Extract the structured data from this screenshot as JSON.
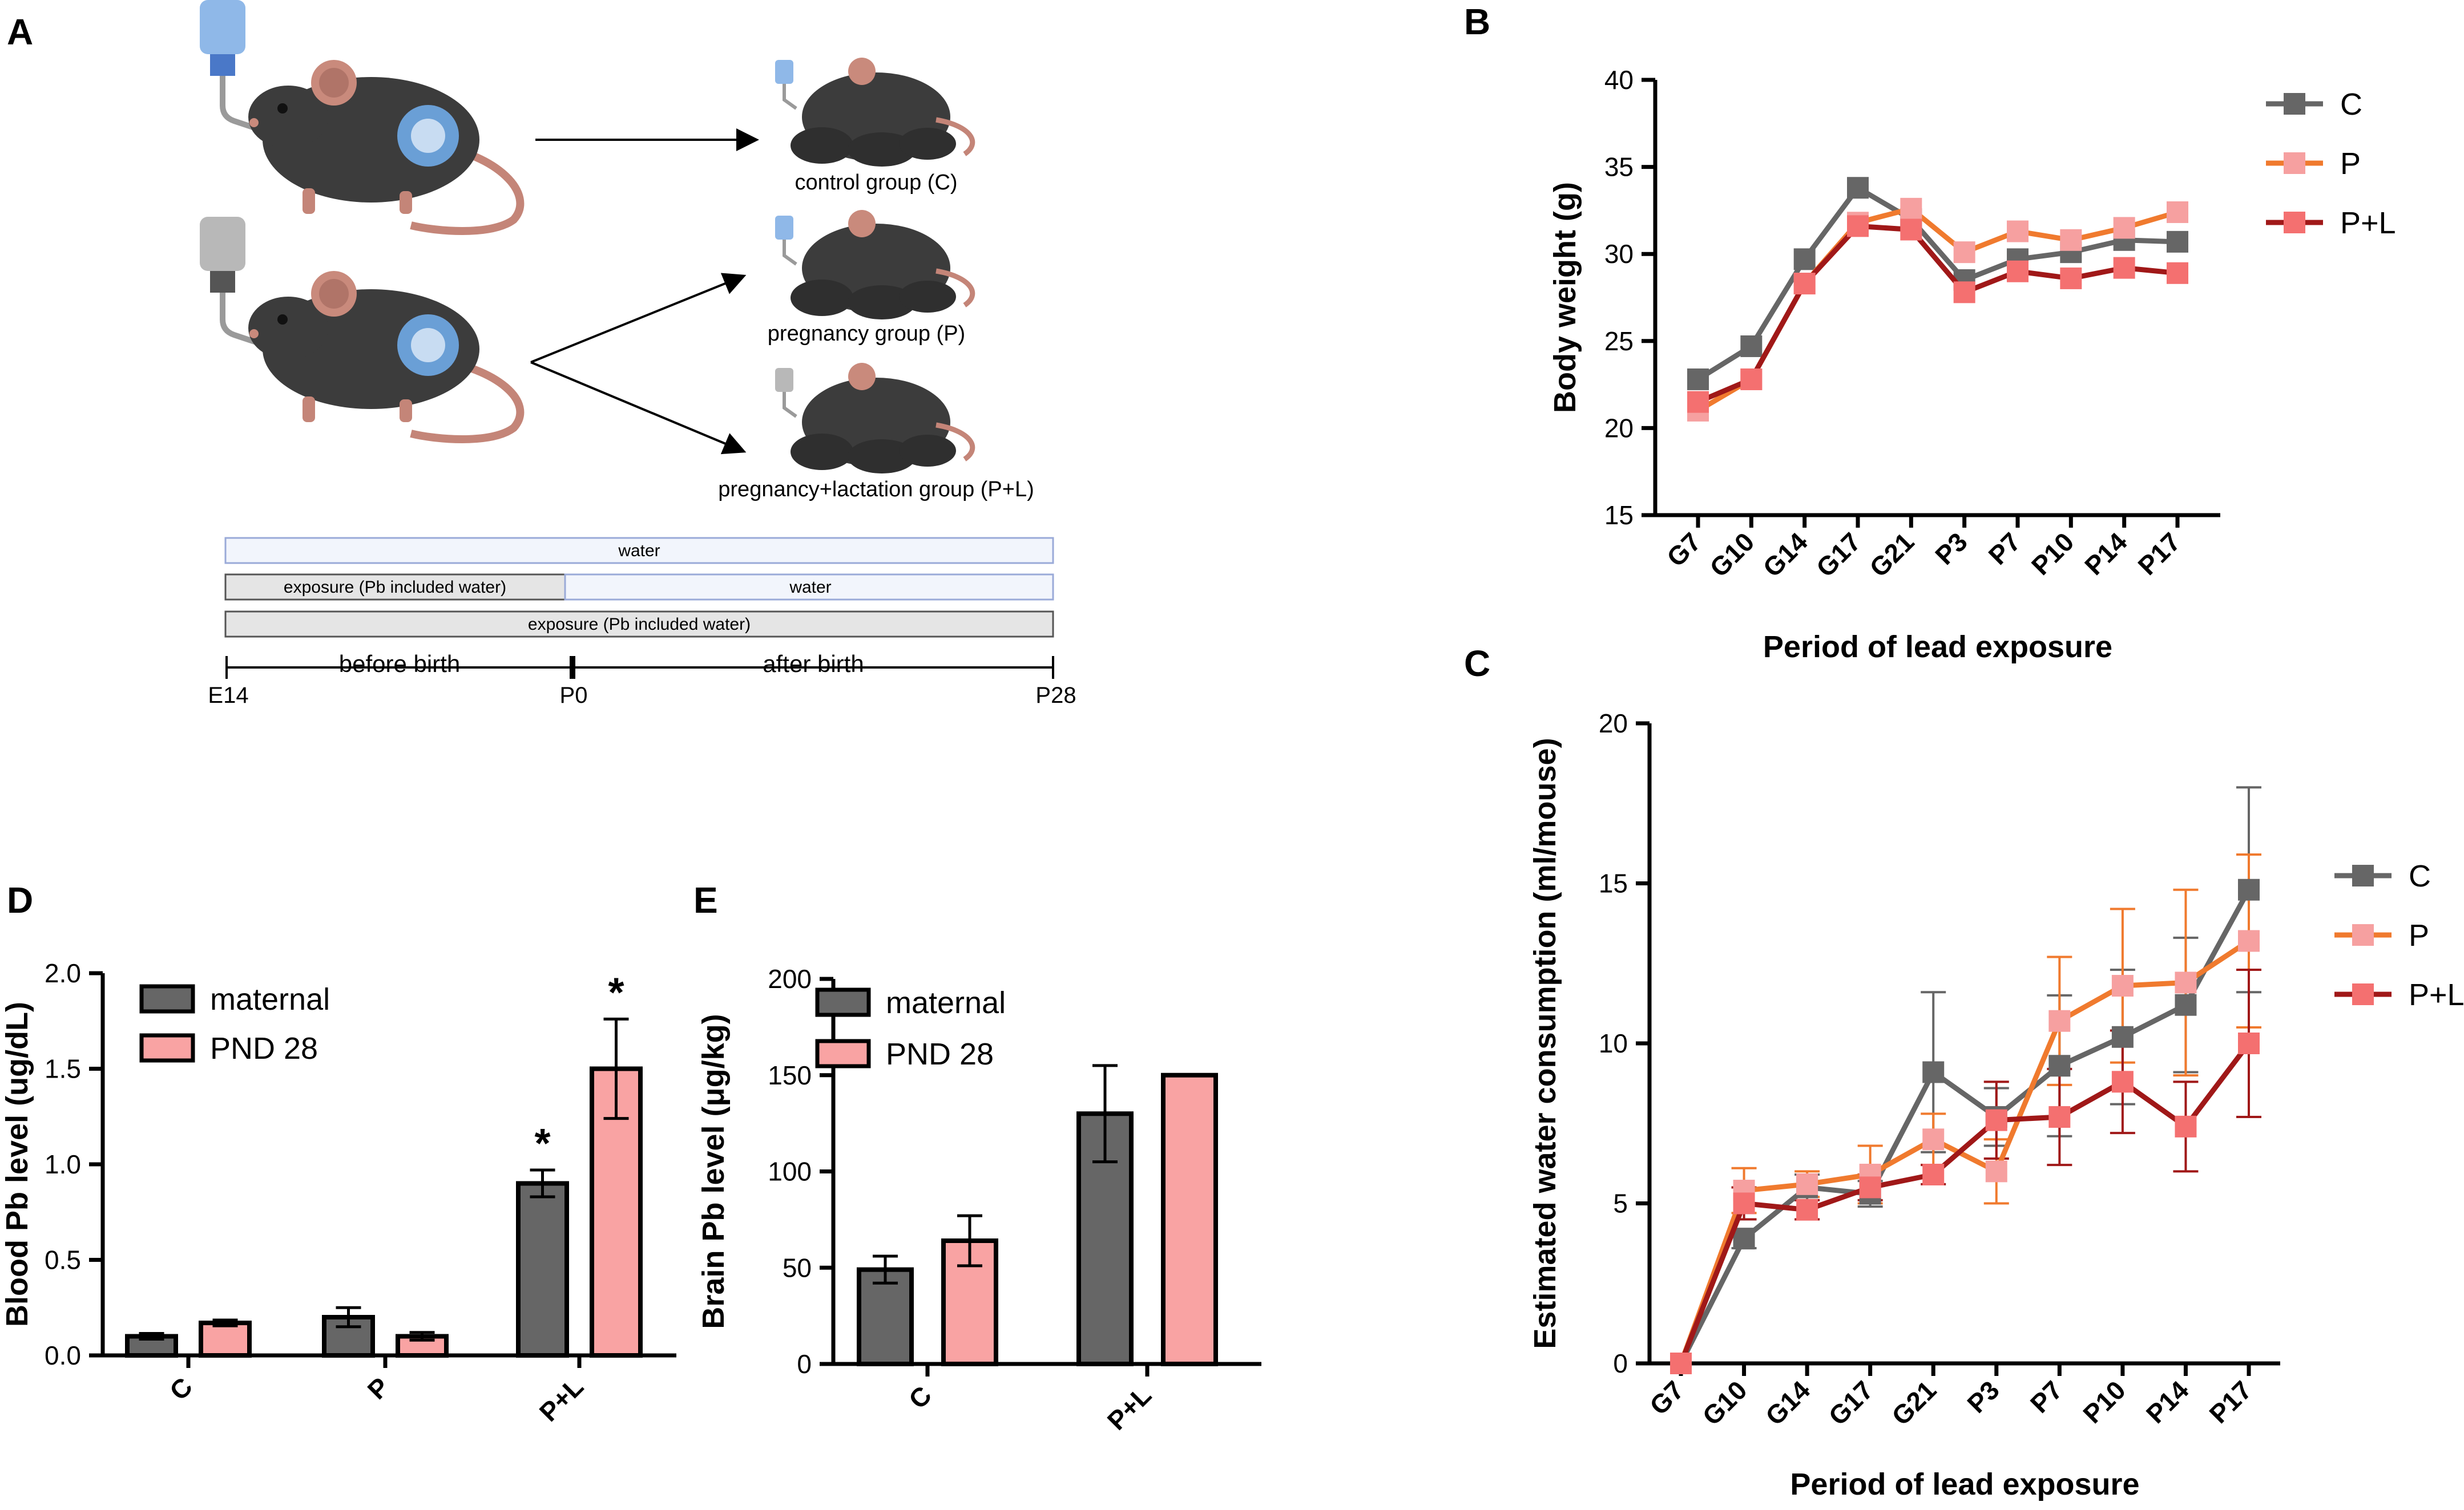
{
  "colors": {
    "C": "#666666",
    "P_line": "#f07a2e",
    "P_marker": "#f6a0a0",
    "PL_line": "#a01818",
    "PL_marker": "#f47070",
    "maternal": "#666666",
    "pnd28": "#f9a3a3",
    "mouse": "#3c3c3c",
    "ear": "#c98a7c",
    "tail": "#c48578",
    "fetus": "#6a9fd6",
    "bottle_blue": "#8fb8e8",
    "bottle_gray": "#b8b8b8",
    "water_box": "#f2f5fc",
    "water_border": "#9aaad8",
    "exposure_box": "#e5e5e5",
    "exposure_border": "#555555"
  },
  "panels": {
    "A": "A",
    "B": "B",
    "C": "C",
    "D": "D",
    "E": "E"
  },
  "diagram": {
    "icons": [
      "mouse-icon",
      "bottle-icon",
      "fetus-icon",
      "pups-icon"
    ],
    "groups": [
      "control group (C)",
      "pregnancy group (P)",
      "pregnancy+lactation group (P+L)"
    ],
    "timeline": {
      "row1": "water",
      "row2_left": "exposure (Pb included water)",
      "row2_right": "water",
      "row3": "exposure (Pb included water)",
      "before": "before birth",
      "after": "after birth",
      "start": "E14",
      "mid": "P0",
      "end": "P28"
    }
  },
  "chart_data": [
    {
      "id": "B",
      "type": "line",
      "title": "",
      "xlabel": "Period of lead exposure",
      "ylabel": "Body weight (g)",
      "categories": [
        "G7",
        "G10",
        "G14",
        "G17",
        "G21",
        "P3",
        "P7",
        "P10",
        "P14",
        "P17"
      ],
      "ylim": [
        15,
        40
      ],
      "yticks": [
        15,
        20,
        25,
        30,
        35,
        40
      ],
      "legend_position": "top-right",
      "series": [
        {
          "name": "C",
          "values": [
            22.8,
            24.7,
            29.7,
            33.8,
            32.0,
            28.5,
            29.7,
            30.1,
            30.8,
            30.7
          ]
        },
        {
          "name": "P",
          "values": [
            21.0,
            22.8,
            28.3,
            31.8,
            32.6,
            30.1,
            31.3,
            30.8,
            31.5,
            32.4
          ]
        },
        {
          "name": "P+L",
          "values": [
            21.5,
            22.8,
            28.3,
            31.6,
            31.4,
            27.8,
            29.0,
            28.6,
            29.2,
            28.9
          ]
        }
      ]
    },
    {
      "id": "C",
      "type": "line",
      "title": "",
      "xlabel": "Period of lead exposure",
      "ylabel": "Estimated water consumption (ml/mouse)",
      "categories": [
        "G7",
        "G10",
        "G14",
        "G17",
        "G21",
        "P3",
        "P7",
        "P10",
        "P14",
        "P17"
      ],
      "ylim": [
        0,
        20
      ],
      "yticks": [
        0,
        5,
        10,
        15,
        20
      ],
      "legend_position": "right",
      "series": [
        {
          "name": "C",
          "values": [
            0,
            3.9,
            5.5,
            5.3,
            9.1,
            7.7,
            9.3,
            10.2,
            11.2,
            14.8
          ],
          "errors": [
            0,
            0.3,
            0.4,
            0.4,
            2.5,
            0.9,
            2.2,
            2.1,
            2.1,
            3.2
          ]
        },
        {
          "name": "P",
          "values": [
            0,
            5.4,
            5.6,
            5.9,
            7.0,
            6.0,
            10.7,
            11.8,
            11.9,
            13.2
          ],
          "errors": [
            0,
            0.7,
            0.4,
            0.9,
            0.8,
            1.0,
            2.0,
            2.4,
            2.9,
            2.7
          ]
        },
        {
          "name": "P+L",
          "values": [
            0,
            5.0,
            4.8,
            5.5,
            5.9,
            7.6,
            7.7,
            8.8,
            7.4,
            10.0
          ],
          "errors": [
            0,
            0.5,
            0.3,
            0.4,
            0.3,
            1.2,
            1.5,
            1.6,
            1.4,
            2.3
          ]
        }
      ]
    },
    {
      "id": "D",
      "type": "bar",
      "title": "",
      "xlabel": "",
      "ylabel": "Blood Pb level (ug/dL)",
      "categories": [
        "C",
        "P",
        "P+L"
      ],
      "ylim": [
        0,
        2.0
      ],
      "yticks": [
        "0.0",
        "0.5",
        "1.0",
        "1.5",
        "2.0"
      ],
      "legend_position": "top-left",
      "significance": "*",
      "series": [
        {
          "name": "maternal",
          "values": [
            0.1,
            0.2,
            0.9
          ],
          "errors": [
            0.015,
            0.05,
            0.07
          ],
          "marked": [
            false,
            false,
            true
          ]
        },
        {
          "name": "PND 28",
          "values": [
            0.17,
            0.1,
            1.5
          ],
          "errors": [
            0.015,
            0.02,
            0.26
          ],
          "marked": [
            false,
            false,
            true
          ]
        }
      ]
    },
    {
      "id": "E",
      "type": "bar",
      "title": "",
      "xlabel": "",
      "ylabel": "Brain Pb level (μg/kg)",
      "categories": [
        "C",
        "P+L"
      ],
      "ylim": [
        0,
        200
      ],
      "yticks": [
        0,
        50,
        100,
        150,
        200
      ],
      "legend_position": "top-left",
      "series": [
        {
          "name": "maternal",
          "values": [
            49,
            130
          ],
          "errors": [
            7,
            25
          ]
        },
        {
          "name": "PND 28",
          "values": [
            64,
            150
          ],
          "errors": [
            13,
            0
          ]
        }
      ]
    }
  ]
}
